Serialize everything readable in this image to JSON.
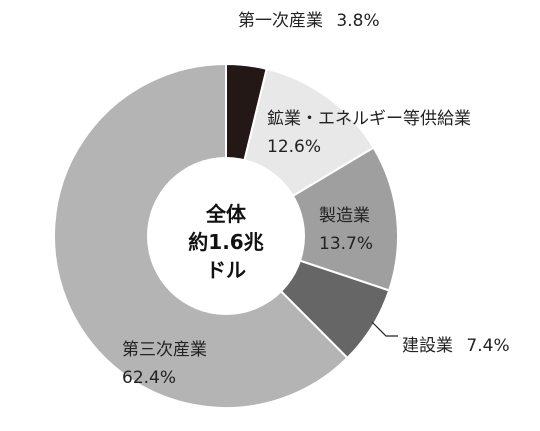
{
  "chart_data": {
    "type": "pie",
    "donut": true,
    "center_text": [
      "全体",
      "約1.6兆",
      "ドル"
    ],
    "slices": [
      {
        "name": "第一次産業",
        "value": 3.8,
        "value_label": "3.8%",
        "color": "#231815"
      },
      {
        "name": "鉱業・エネルギー等供給業",
        "value": 12.6,
        "value_label": "12.6%",
        "color": "#e8e8e8"
      },
      {
        "name": "製造業",
        "value": 13.7,
        "value_label": "13.7%",
        "color": "#9f9f9f"
      },
      {
        "name": "建設業",
        "value": 7.4,
        "value_label": "7.4%",
        "color": "#666666"
      },
      {
        "name": "第三次産業",
        "value": 62.4,
        "value_label": "62.4%",
        "color": "#b4b4b4"
      }
    ]
  }
}
